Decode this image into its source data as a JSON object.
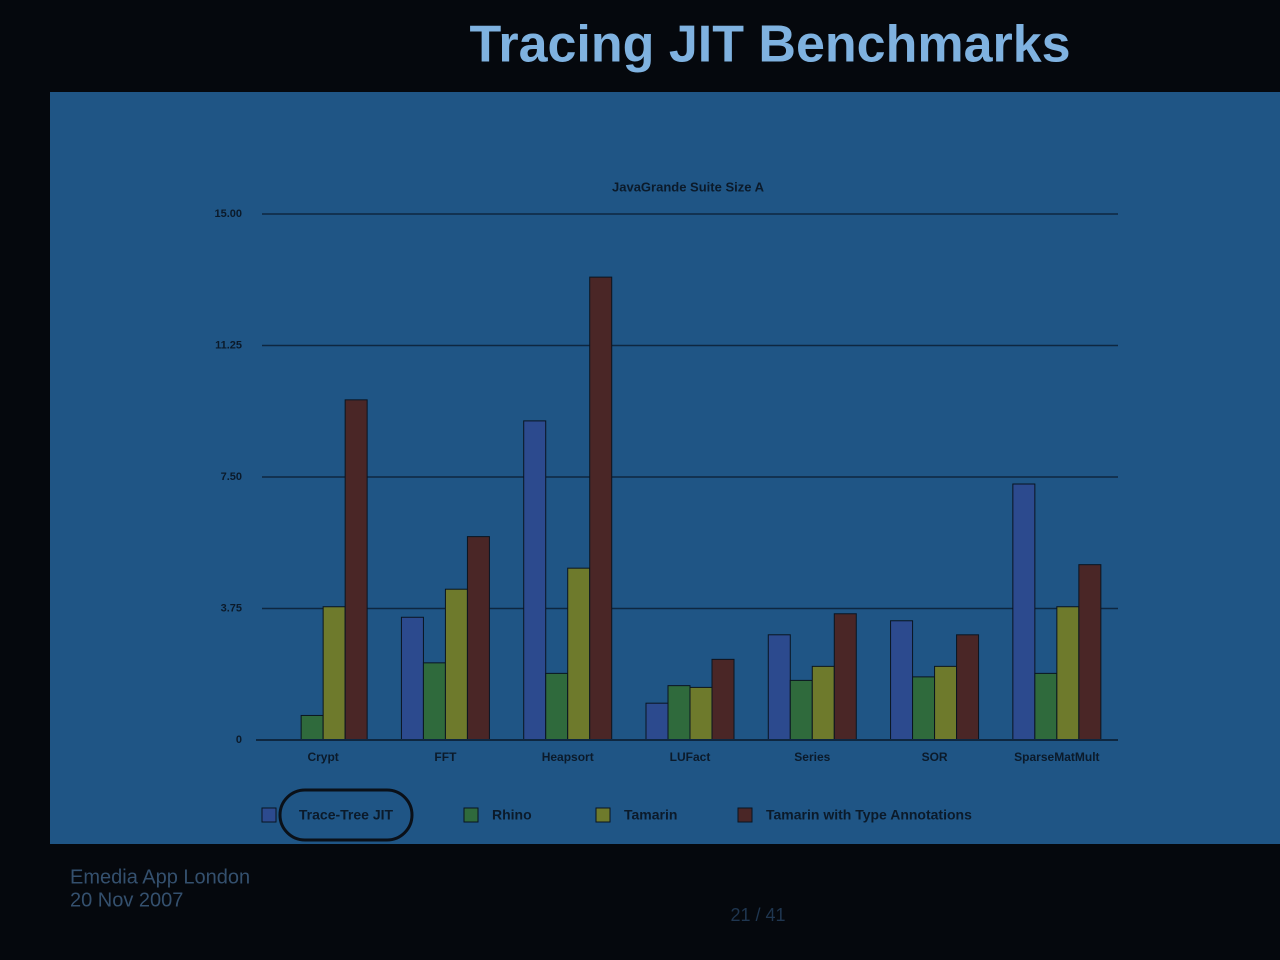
{
  "slide": {
    "title": "Tracing JIT Benchmarks",
    "footer": [
      "Emedia App London",
      "20 Nov 2007"
    ],
    "page": "21 / 41"
  },
  "chart_data": {
    "type": "bar",
    "title": "JavaGrande Suite Size A",
    "categories": [
      "Crypt",
      "FFT",
      "Heapsort",
      "LUFact",
      "Series",
      "SOR",
      "SparseMatMult"
    ],
    "series": [
      {
        "name": "Trace-Tree JIT",
        "color": "#2c4a8e",
        "values": [
          null,
          3.5,
          9.1,
          1.05,
          3.0,
          3.4,
          7.3
        ]
      },
      {
        "name": "Rhino",
        "color": "#2f6a3c",
        "values": [
          0.7,
          2.2,
          1.9,
          1.55,
          1.7,
          1.8,
          1.9
        ]
      },
      {
        "name": "Tamarin",
        "color": "#6e7a2c",
        "values": [
          3.8,
          4.3,
          4.9,
          1.5,
          2.1,
          2.1,
          3.8
        ]
      },
      {
        "name": "Tamarin with Type Annotations",
        "color": "#4a2626",
        "values": [
          9.7,
          5.8,
          13.2,
          2.3,
          3.6,
          3.0,
          5.0
        ]
      }
    ],
    "ylim": [
      0,
      15
    ],
    "yticks": [
      0,
      3.75,
      {
        "value": 7.5,
        "label": "7.50"
      },
      11.25,
      {
        "value": 15,
        "label": "15.00"
      }
    ],
    "grid": true,
    "legend": "bottom"
  }
}
